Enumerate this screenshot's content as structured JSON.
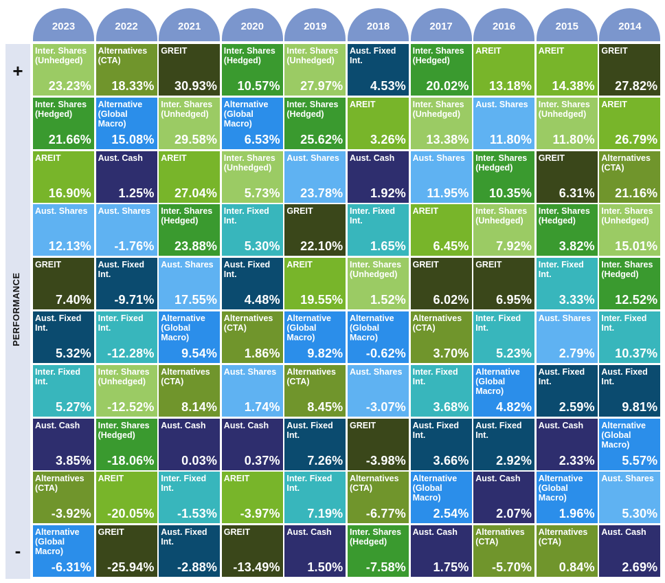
{
  "side": {
    "plus": "+",
    "minus": "-",
    "label": "PERFORMANCE"
  },
  "colors": {
    "Inter. Shares (Unhedged)": "#9bcb64",
    "Inter. Shares (Hedged)": "#3a9a2f",
    "Alternatives (CTA)": "#70952c",
    "GREIT": "#3a471a",
    "Aust. Fixed Int.": "#0b4b6f",
    "AREIT": "#78b52a",
    "Alternative (Global Macro)": "#2b8eea",
    "Aust. Shares": "#5fb2f2",
    "Aust. Cash": "#2e2e6e",
    "Inter. Fixed Int.": "#38b6bc"
  },
  "chart_data": {
    "type": "table",
    "years": [
      "2023",
      "2022",
      "2021",
      "2020",
      "2019",
      "2018",
      "2017",
      "2016",
      "2015",
      "2014"
    ],
    "columns": [
      {
        "year": "2023",
        "cells": [
          {
            "name": "Inter. Shares (Unhedged)",
            "value": "23.23%"
          },
          {
            "name": "Inter. Shares (Hedged)",
            "value": "21.66%"
          },
          {
            "name": "AREIT",
            "value": "16.90%"
          },
          {
            "name": "Aust. Shares",
            "value": "12.13%"
          },
          {
            "name": "GREIT",
            "value": "7.40%"
          },
          {
            "name": "Aust. Fixed Int.",
            "value": "5.32%"
          },
          {
            "name": "Inter. Fixed Int.",
            "value": "5.27%"
          },
          {
            "name": "Aust. Cash",
            "value": "3.85%"
          },
          {
            "name": "Alternatives (CTA)",
            "value": "-3.92%"
          },
          {
            "name": "Alternative (Global Macro)",
            "value": "-6.31%"
          }
        ]
      },
      {
        "year": "2022",
        "cells": [
          {
            "name": "Alternatives (CTA)",
            "value": "18.33%"
          },
          {
            "name": "Alternative (Global Macro)",
            "value": "15.08%"
          },
          {
            "name": "Aust. Cash",
            "value": "1.25%"
          },
          {
            "name": "Aust. Shares",
            "value": "-1.76%"
          },
          {
            "name": "Aust. Fixed Int.",
            "value": "-9.71%"
          },
          {
            "name": "Inter. Fixed Int.",
            "value": "-12.28%"
          },
          {
            "name": "Inter. Shares (Unhedged)",
            "value": "-12.52%"
          },
          {
            "name": "Inter. Shares (Hedged)",
            "value": "-18.06%"
          },
          {
            "name": "AREIT",
            "value": "-20.05%"
          },
          {
            "name": "GREIT",
            "value": "-25.94%"
          }
        ]
      },
      {
        "year": "2021",
        "cells": [
          {
            "name": "GREIT",
            "value": "30.93%"
          },
          {
            "name": "Inter. Shares (Unhedged)",
            "value": "29.58%"
          },
          {
            "name": "AREIT",
            "value": "27.04%"
          },
          {
            "name": "Inter. Shares (Hedged)",
            "value": "23.88%"
          },
          {
            "name": "Aust. Shares",
            "value": "17.55%"
          },
          {
            "name": "Alternative (Global Macro)",
            "value": "9.54%"
          },
          {
            "name": "Alternatives (CTA)",
            "value": "8.14%"
          },
          {
            "name": "Aust. Cash",
            "value": "0.03%"
          },
          {
            "name": "Inter. Fixed Int.",
            "value": "-1.53%"
          },
          {
            "name": "Aust. Fixed Int.",
            "value": "-2.88%"
          }
        ]
      },
      {
        "year": "2020",
        "cells": [
          {
            "name": "Inter. Shares (Hedged)",
            "value": "10.57%"
          },
          {
            "name": "Alternative (Global Macro)",
            "value": "6.53%"
          },
          {
            "name": "Inter. Shares (Unhedged)",
            "value": "5.73%"
          },
          {
            "name": "Inter. Fixed Int.",
            "value": "5.30%"
          },
          {
            "name": "Aust. Fixed Int.",
            "value": "4.48%"
          },
          {
            "name": "Alternatives (CTA)",
            "value": "1.86%"
          },
          {
            "name": "Aust. Shares",
            "value": "1.74%"
          },
          {
            "name": "Aust. Cash",
            "value": "0.37%"
          },
          {
            "name": "AREIT",
            "value": "-3.97%"
          },
          {
            "name": "GREIT",
            "value": "-13.49%"
          }
        ]
      },
      {
        "year": "2019",
        "cells": [
          {
            "name": "Inter. Shares (Unhedged)",
            "value": "27.97%"
          },
          {
            "name": "Inter. Shares (Hedged)",
            "value": "25.62%"
          },
          {
            "name": "Aust. Shares",
            "value": "23.78%"
          },
          {
            "name": "GREIT",
            "value": "22.10%"
          },
          {
            "name": "AREIT",
            "value": "19.55%"
          },
          {
            "name": "Alternative (Global Macro)",
            "value": "9.82%"
          },
          {
            "name": "Alternatives (CTA)",
            "value": "8.45%"
          },
          {
            "name": "Aust. Fixed Int.",
            "value": "7.26%"
          },
          {
            "name": "Inter. Fixed Int.",
            "value": "7.19%"
          },
          {
            "name": "Aust. Cash",
            "value": "1.50%"
          }
        ]
      },
      {
        "year": "2018",
        "cells": [
          {
            "name": "Aust. Fixed Int.",
            "value": "4.53%"
          },
          {
            "name": "AREIT",
            "value": "3.26%"
          },
          {
            "name": "Aust. Cash",
            "value": "1.92%"
          },
          {
            "name": "Inter. Fixed Int.",
            "value": "1.65%"
          },
          {
            "name": "Inter. Shares (Unhedged)",
            "value": "1.52%"
          },
          {
            "name": "Alternative (Global Macro)",
            "value": "-0.62%"
          },
          {
            "name": "Aust. Shares",
            "value": "-3.07%"
          },
          {
            "name": "GREIT",
            "value": "-3.98%"
          },
          {
            "name": "Alternatives (CTA)",
            "value": "-6.77%"
          },
          {
            "name": "Inter. Shares (Hedged)",
            "value": "-7.58%"
          }
        ]
      },
      {
        "year": "2017",
        "cells": [
          {
            "name": "Inter. Shares (Hedged)",
            "value": "20.02%"
          },
          {
            "name": "Inter. Shares (Unhedged)",
            "value": "13.38%"
          },
          {
            "name": "Aust. Shares",
            "value": "11.95%"
          },
          {
            "name": "AREIT",
            "value": "6.45%"
          },
          {
            "name": "GREIT",
            "value": "6.02%"
          },
          {
            "name": "Alternatives (CTA)",
            "value": "3.70%"
          },
          {
            "name": "Inter. Fixed Int.",
            "value": "3.68%"
          },
          {
            "name": "Aust. Fixed Int.",
            "value": "3.66%"
          },
          {
            "name": "Alternative (Global Macro)",
            "value": "2.54%"
          },
          {
            "name": "Aust. Cash",
            "value": "1.75%"
          }
        ]
      },
      {
        "year": "2016",
        "cells": [
          {
            "name": "AREIT",
            "value": "13.18%"
          },
          {
            "name": "Aust. Shares",
            "value": "11.80%"
          },
          {
            "name": "Inter. Shares (Hedged)",
            "value": "10.35%"
          },
          {
            "name": "Inter. Shares (Unhedged)",
            "value": "7.92%"
          },
          {
            "name": "GREIT",
            "value": "6.95%"
          },
          {
            "name": "Inter. Fixed Int.",
            "value": "5.23%"
          },
          {
            "name": "Alternative (Global Macro)",
            "value": "4.82%"
          },
          {
            "name": "Aust. Fixed Int.",
            "value": "2.92%"
          },
          {
            "name": "Aust. Cash",
            "value": "2.07%"
          },
          {
            "name": "Alternatives (CTA)",
            "value": "-5.70%"
          }
        ]
      },
      {
        "year": "2015",
        "cells": [
          {
            "name": "AREIT",
            "value": "14.38%"
          },
          {
            "name": "Inter. Shares (Unhedged)",
            "value": "11.80%"
          },
          {
            "name": "GREIT",
            "value": "6.31%"
          },
          {
            "name": "Inter. Shares (Hedged)",
            "value": "3.82%"
          },
          {
            "name": "Inter. Fixed Int.",
            "value": "3.33%"
          },
          {
            "name": "Aust. Shares",
            "value": "2.79%"
          },
          {
            "name": "Aust. Fixed Int.",
            "value": "2.59%"
          },
          {
            "name": "Aust. Cash",
            "value": "2.33%"
          },
          {
            "name": "Alternative (Global Macro)",
            "value": "1.96%"
          },
          {
            "name": "Alternatives (CTA)",
            "value": "0.84%"
          }
        ]
      },
      {
        "year": "2014",
        "cells": [
          {
            "name": "GREIT",
            "value": "27.82%"
          },
          {
            "name": "AREIT",
            "value": "26.79%"
          },
          {
            "name": "Alternatives (CTA)",
            "value": "21.16%"
          },
          {
            "name": "Inter. Shares (Unhedged)",
            "value": "15.01%"
          },
          {
            "name": "Inter. Shares (Hedged)",
            "value": "12.52%"
          },
          {
            "name": "Inter. Fixed Int.",
            "value": "10.37%"
          },
          {
            "name": "Aust. Fixed Int.",
            "value": "9.81%"
          },
          {
            "name": "Alternative (Global Macro)",
            "value": "5.57%"
          },
          {
            "name": "Aust. Shares",
            "value": "5.30%"
          },
          {
            "name": "Aust. Cash",
            "value": "2.69%"
          }
        ]
      }
    ]
  }
}
